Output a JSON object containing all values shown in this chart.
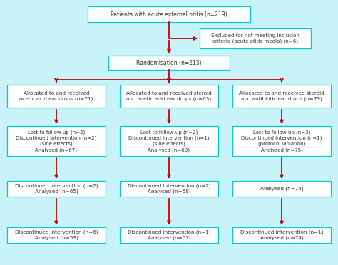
{
  "bg_color": "#c8f4f9",
  "box_facecolor": "#ffffff",
  "box_edge_color": "#00cccc",
  "arrow_color": "#cc0000",
  "text_color": "#333333",
  "font_size": 5.5,
  "title_box": "Patients with acute external otitis (n=219)",
  "exclude_box": "Excluded for not meeting inclusion\ncriteria (acute otitis media) (n=6)",
  "randomise_box": "Randomisation (n=213)",
  "col1_box1": "Allocated to and received\nacetic acid ear drops (n=71)",
  "col2_box1": "Allocated to and received steroid\nand acetic acid ear drops (n=63)",
  "col3_box1": "Allocated to and received steroid\nand antibiotic ear drops (n=79)",
  "col1_box2": "Lost to follow up (n=2)\nDiscontinued intervention (n=2)\n(side effects)\nAnalysed (n=67)",
  "col2_box2": "Lost to follow up (n=2)\nDiscontinued intervention (n=1)\n(side effects)\nAnalysed (n=60)",
  "col3_box2": "Lost to follow up (n=3)\nDiscontinued intervention (n=1)\n(protocol violation)\nAnalysed (n=75)",
  "col1_box3": "Discontinued intervention (n=2)\nAnalysed (n=65)",
  "col2_box3": "Discontinued intervention (n=2)\nAnalysed (n=58)",
  "col3_box3": "Analysed (n=75)",
  "col1_box4": "Discontinued intervention (n=6)\nAnalysed (n=59)",
  "col2_box4": "Discontinued intervention (n=1)\nAnalysed (n=57)",
  "col3_box4": "Discontinued intervention (n=1)\nAnalysed (n=74)"
}
